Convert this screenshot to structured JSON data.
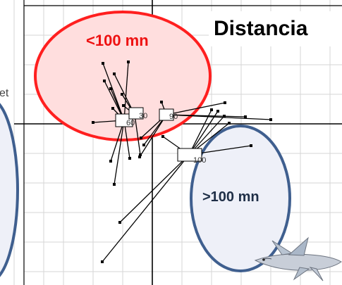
{
  "title": "Distancia",
  "near_label": "<100 mn",
  "far_label": ">100 mn",
  "edge_text": "et",
  "centroids": [
    "60",
    "30",
    "90",
    "100"
  ],
  "colors": {
    "near_fill": "#ffdede",
    "near_stroke": "#ff1f1f",
    "near_text": "#ee1111",
    "far_fill": "#eef0f8",
    "far_stroke": "#3f5f8f",
    "far_text": "#1f2f47",
    "grid": "#d6d6d6",
    "axes": "#000000"
  },
  "icons": {
    "fish": "flying-fish-icon"
  }
}
